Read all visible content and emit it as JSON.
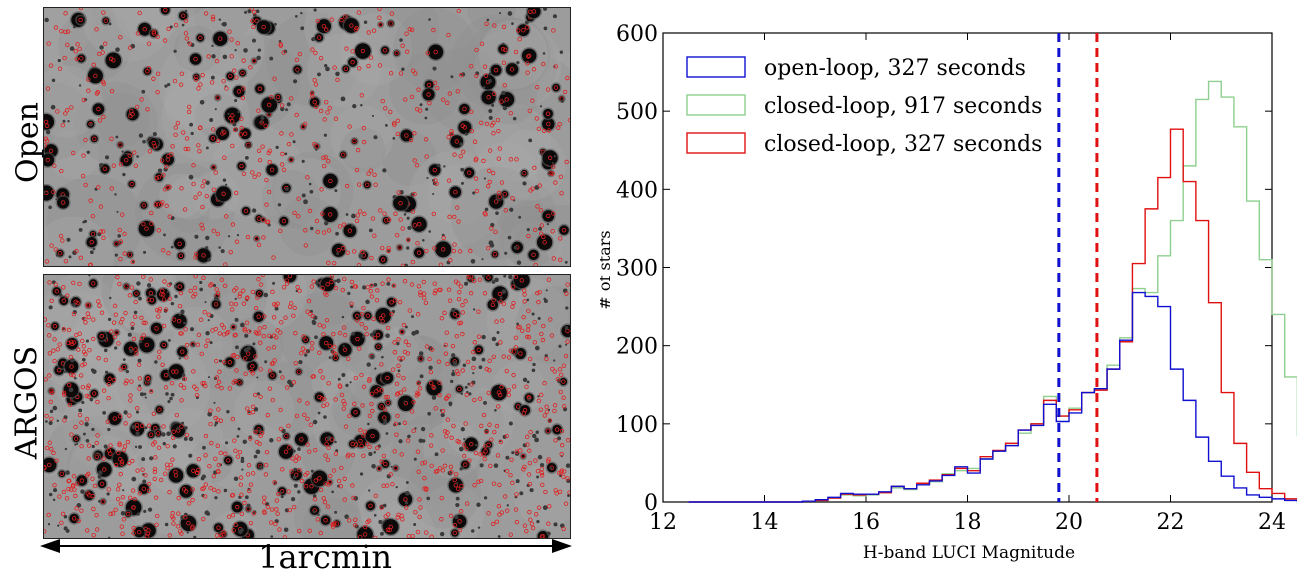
{
  "images": {
    "top_label": "Open",
    "bottom_label": "ARGOS",
    "scale_label": "1arcmin"
  },
  "colors": {
    "open_loop": "#1010d0",
    "closed_917": "#8fcf8f",
    "closed_327": "#e01010"
  },
  "chart_data": {
    "type": "histogram",
    "xlabel": "H-band LUCI Magnitude",
    "ylabel": "# of stars",
    "xlim": [
      12,
      24
    ],
    "ylim": [
      0,
      600
    ],
    "xticks": [
      12,
      14,
      16,
      18,
      20,
      22,
      24
    ],
    "yticks": [
      0,
      100,
      200,
      300,
      400,
      500,
      600
    ],
    "bin_width": 0.25,
    "bin_start": 12.5,
    "legend_position": "top-left",
    "vlines": [
      {
        "x": 19.8,
        "color": "#1010d0",
        "style": "dashed"
      },
      {
        "x": 20.55,
        "color": "#e01010",
        "style": "dashed"
      }
    ],
    "series": [
      {
        "name": "open-loop, 327 seconds",
        "color": "#1010d0",
        "values": [
          0,
          0,
          0,
          0,
          0,
          0,
          0,
          0,
          0,
          1,
          3,
          6,
          11,
          10,
          10,
          13,
          20,
          17,
          22,
          27,
          34,
          45,
          37,
          55,
          65,
          72,
          92,
          98,
          125,
          103,
          114,
          140,
          145,
          170,
          207,
          268,
          263,
          250,
          170,
          130,
          83,
          52,
          33,
          18,
          9,
          6,
          4,
          2,
          1,
          0,
          0,
          0
        ]
      },
      {
        "name": "closed-loop, 917 seconds",
        "color": "#8fcf8f",
        "values": [
          0,
          0,
          0,
          0,
          0,
          0,
          0,
          0,
          0,
          1,
          2,
          5,
          9,
          8,
          9,
          12,
          18,
          16,
          22,
          26,
          36,
          40,
          43,
          55,
          65,
          75,
          88,
          100,
          135,
          110,
          120,
          140,
          145,
          175,
          210,
          273,
          268,
          315,
          360,
          430,
          515,
          538,
          518,
          480,
          385,
          310,
          240,
          160,
          85,
          48,
          20,
          6
        ]
      },
      {
        "name": "closed-loop, 327 seconds",
        "color": "#e01010",
        "values": [
          0,
          0,
          0,
          0,
          0,
          0,
          0,
          0,
          0,
          1,
          2,
          5,
          10,
          9,
          10,
          12,
          20,
          17,
          24,
          28,
          35,
          43,
          40,
          58,
          66,
          75,
          92,
          100,
          130,
          110,
          118,
          140,
          143,
          170,
          205,
          305,
          375,
          415,
          477,
          410,
          360,
          255,
          140,
          75,
          38,
          17,
          11,
          4,
          2,
          0,
          0,
          0
        ]
      }
    ]
  }
}
